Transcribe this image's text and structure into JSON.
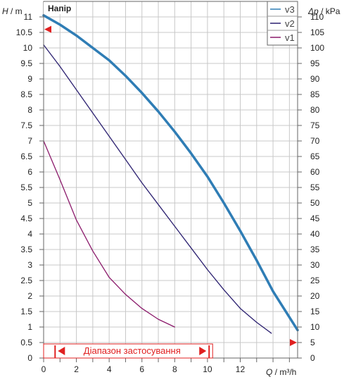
{
  "chart_data": {
    "type": "line",
    "title": "Напір",
    "ylabel_left": {
      "symbol": "H",
      "unit": " / m"
    },
    "ylabel_right": {
      "symbol": "Δp",
      "unit": " / kPa"
    },
    "xlabel": {
      "symbol": "Q",
      "unit": " / m³/h"
    },
    "xlim": [
      0,
      15.5
    ],
    "ylim": [
      0,
      11.5
    ],
    "ylim_right": [
      0,
      115
    ],
    "x_ticks": [
      0,
      2,
      4,
      6,
      8,
      10,
      12
    ],
    "x_tick_labels": [
      "0",
      "2",
      "4",
      "6",
      "8",
      "10",
      "12"
    ],
    "y_ticks": [
      0,
      0.5,
      1,
      1.5,
      2,
      2.5,
      3,
      3.5,
      4,
      4.5,
      5,
      5.5,
      6,
      6.5,
      7,
      7.5,
      8,
      8.5,
      9,
      9.5,
      10,
      10.5,
      11
    ],
    "y_tick_labels": [
      "0",
      "0.5",
      "1",
      "1.5",
      "2",
      "2.5",
      "3",
      "3.5",
      "4",
      "4.5",
      "5",
      "5.5",
      "6",
      "6.5",
      "7",
      "7.5",
      "8",
      "8.5",
      "9",
      "9.5",
      "10",
      "10.5",
      "11"
    ],
    "y_right_ticks": [
      0,
      5,
      10,
      15,
      20,
      25,
      30,
      35,
      40,
      45,
      50,
      55,
      60,
      65,
      70,
      75,
      80,
      85,
      90,
      95,
      100,
      105,
      110
    ],
    "y_right_tick_labels": [
      "0",
      "5",
      "10",
      "15",
      "20",
      "25",
      "30",
      "35",
      "40",
      "45",
      "50",
      "55",
      "60",
      "65",
      "70",
      "75",
      "80",
      "85",
      "90",
      "95",
      "100",
      "105",
      "110"
    ],
    "grid": true,
    "legend_position": "top-right",
    "series": [
      {
        "name": "v3",
        "color": "#2f7db5",
        "x": [
          0,
          1,
          2,
          3,
          4,
          5,
          6,
          7,
          8,
          9,
          10,
          11,
          12,
          13,
          14,
          15.5
        ],
        "y": [
          11.05,
          10.75,
          10.4,
          10.0,
          9.6,
          9.1,
          8.55,
          7.95,
          7.3,
          6.6,
          5.85,
          5.0,
          4.1,
          3.15,
          2.15,
          0.9
        ]
      },
      {
        "name": "v2",
        "color": "#2b2070",
        "x": [
          0,
          1,
          2,
          3,
          4,
          5,
          6,
          7,
          8,
          9,
          10,
          11,
          12,
          13,
          13.9
        ],
        "y": [
          10.1,
          9.4,
          8.65,
          7.9,
          7.15,
          6.4,
          5.65,
          4.95,
          4.25,
          3.55,
          2.85,
          2.2,
          1.6,
          1.15,
          0.8
        ]
      },
      {
        "name": "v1",
        "color": "#8b1a6b",
        "x": [
          0,
          1,
          2,
          3,
          4,
          5,
          6,
          7,
          8
        ],
        "y": [
          7.0,
          5.75,
          4.45,
          3.45,
          2.6,
          2.05,
          1.6,
          1.25,
          1.0
        ]
      }
    ],
    "markers": [
      {
        "name": "setpoint-marker-left",
        "x": 0,
        "y": 10.6,
        "color": "#e02020"
      },
      {
        "name": "setpoint-marker-right",
        "x": 15.5,
        "y": 0.5,
        "color": "#e02020"
      }
    ],
    "range_annotation": {
      "text": "Діапазон застосування",
      "x_start": 0.7,
      "x_end": 10.1,
      "color": "#e02020"
    }
  }
}
